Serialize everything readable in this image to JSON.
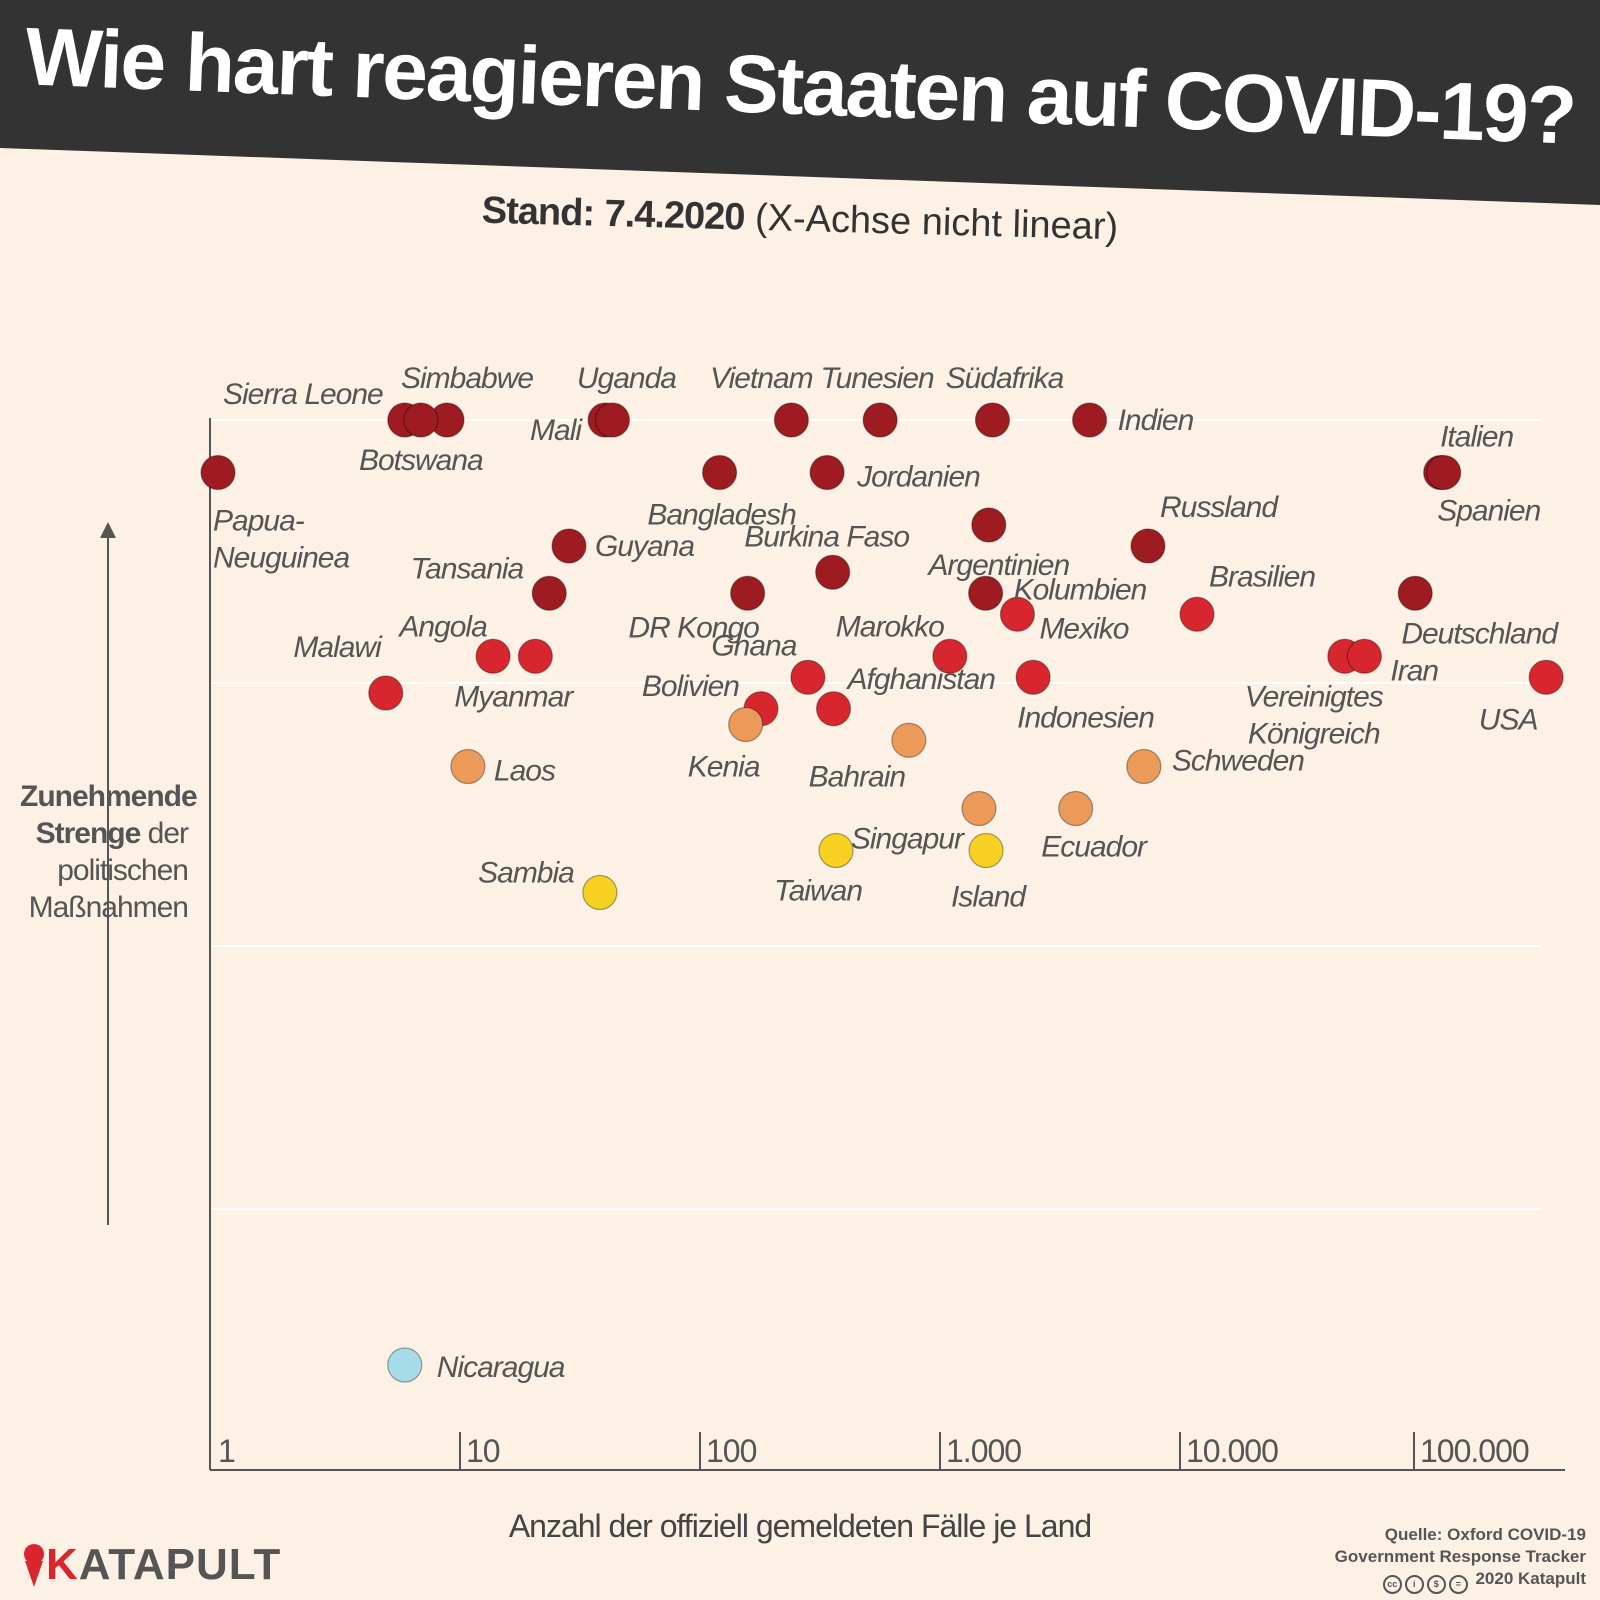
{
  "title": "Wie hart reagieren Staaten auf COVID-19?",
  "subtitle": {
    "prefix": "Stand:",
    "date": "7.4.2020",
    "note": "(X-Achse nicht linear)"
  },
  "y_axis_label": {
    "bold": "Zunehmende Strenge",
    "rest": "der politischen Maßnahmen"
  },
  "x_axis_label": "Anzahl der offiziell gemeldeten Fälle je Land",
  "logo": {
    "k": "K",
    "rest": "ATAPULT"
  },
  "source": {
    "line1": "Quelle: Oxford COVID-19",
    "line2": "Government Response Tracker",
    "line3": "2020 Katapult"
  },
  "colors": {
    "background": "#fdf1e6",
    "header": "#333333",
    "darkred": "#9e1b22",
    "red": "#d7262e",
    "orange": "#ec9a5a",
    "yellow": "#f7d121",
    "lightblue": "#a6dbe8",
    "axis": "#555555",
    "grid": "#ffffff"
  },
  "chart_data": {
    "type": "scatter",
    "title": "Wie hart reagieren Staaten auf COVID-19?",
    "xlabel": "Anzahl der offiziell gemeldeten Fälle je Land",
    "ylabel": "Zunehmende Strenge der politischen Maßnahmen",
    "x_scale": "log (nicht linear)",
    "x_ticks": [
      "1",
      "10",
      "100",
      "1.000",
      "10.000",
      "100.000"
    ],
    "ylim": [
      0,
      100
    ],
    "points": [
      {
        "name": "Sierra Leone",
        "x": 6,
        "y": 100,
        "cat": "darkred",
        "label": [
          "Sierra Leone"
        ],
        "anchor": "end",
        "ldx": -22,
        "ldy": -16
      },
      {
        "name": "Simbabwe",
        "x": 9,
        "y": 100,
        "cat": "darkred",
        "label": [
          "Simbabwe"
        ],
        "anchor": "middle",
        "ldx": 20,
        "ldy": -32
      },
      {
        "name": "Botswana",
        "x": 7,
        "y": 100,
        "cat": "darkred",
        "label": [
          "Botswana"
        ],
        "anchor": "middle",
        "ldx": 0,
        "ldy": 50
      },
      {
        "name": "Mali",
        "x": 41,
        "y": 100,
        "cat": "darkred",
        "label": [
          "Mali"
        ],
        "anchor": "end",
        "ldx": -24,
        "ldy": 20
      },
      {
        "name": "Uganda",
        "x": 44,
        "y": 100,
        "cat": "darkred",
        "label": [
          "Uganda"
        ],
        "anchor": "middle",
        "ldx": 14,
        "ldy": -32
      },
      {
        "name": "Vietnam",
        "x": 245,
        "y": 100,
        "cat": "darkred",
        "label": [
          "Vietnam"
        ],
        "anchor": "middle",
        "ldx": -30,
        "ldy": -32
      },
      {
        "name": "Tunesien",
        "x": 574,
        "y": 100,
        "cat": "darkred",
        "label": [
          "Tunesien"
        ],
        "anchor": "middle",
        "ldx": -3,
        "ldy": -32
      },
      {
        "name": "Südafrika",
        "x": 1686,
        "y": 100,
        "cat": "darkred",
        "label": [
          "Südafrika"
        ],
        "anchor": "middle",
        "ldx": 12,
        "ldy": -32
      },
      {
        "name": "Indien",
        "x": 4281,
        "y": 100,
        "cat": "darkred",
        "label": [
          "Indien"
        ],
        "anchor": "start",
        "ldx": 28,
        "ldy": 10
      },
      {
        "name": "Papua-Neuguinea",
        "x": 1,
        "y": 95,
        "cat": "darkred",
        "label": [
          "Papua-",
          "Neuguinea"
        ],
        "anchor": "start",
        "ldx": -5,
        "ldy": 58
      },
      {
        "name": "Bangladesh",
        "x": 123,
        "y": 95,
        "cat": "darkred",
        "label": [
          "Bangladesh"
        ],
        "anchor": "middle",
        "ldx": 2,
        "ldy": 52
      },
      {
        "name": "Jordanien",
        "x": 345,
        "y": 95,
        "cat": "darkred",
        "label": [
          "Jordanien"
        ],
        "anchor": "start",
        "ldx": 30,
        "ldy": 14
      },
      {
        "name": "Italien",
        "x": 132547,
        "y": 95,
        "cat": "darkred",
        "label": [
          "Italien"
        ],
        "anchor": "middle",
        "ldx": 36,
        "ldy": -26
      },
      {
        "name": "Spanien",
        "x": 136675,
        "y": 95,
        "cat": "darkred",
        "label": [
          "Spanien"
        ],
        "anchor": "middle",
        "ldx": 45,
        "ldy": 48
      },
      {
        "name": "Argentinien",
        "x": 1628,
        "y": 90,
        "cat": "darkred",
        "label": [
          "Argentinien"
        ],
        "anchor": "middle",
        "ldx": 10,
        "ldy": 50
      },
      {
        "name": "Russland",
        "x": 7497,
        "y": 88,
        "cat": "darkred",
        "label": [
          "Russland"
        ],
        "anchor": "start",
        "ldx": 12,
        "ldy": -29
      },
      {
        "name": "Guyana",
        "x": 29,
        "y": 88,
        "cat": "darkred",
        "label": [
          "Guyana"
        ],
        "anchor": "start",
        "ldx": 26,
        "ldy": 10
      },
      {
        "name": "Burkina Faso",
        "x": 364,
        "y": 85.5,
        "cat": "darkred",
        "label": [
          "Burkina Faso"
        ],
        "anchor": "middle",
        "ldx": -6,
        "ldy": -26
      },
      {
        "name": "Tansania",
        "x": 24,
        "y": 83.5,
        "cat": "darkred",
        "label": [
          "Tansania"
        ],
        "anchor": "end",
        "ldx": -26,
        "ldy": -15
      },
      {
        "name": "DR Kongo",
        "x": 161,
        "y": 83.5,
        "cat": "darkred",
        "label": [
          "DR Kongo"
        ],
        "anchor": "middle",
        "ldx": -54,
        "ldy": 44
      },
      {
        "name": "Kolumbien",
        "x": 1579,
        "y": 83.5,
        "cat": "darkred",
        "label": [
          "Kolumbien"
        ],
        "anchor": "start",
        "ldx": 28,
        "ldy": 6
      },
      {
        "name": "Deutschland",
        "x": 103228,
        "y": 83.5,
        "cat": "darkred",
        "label": [
          "Deutschland"
        ],
        "anchor": "middle",
        "ldx": 64,
        "ldy": 50
      },
      {
        "name": "Mexiko",
        "x": 2143,
        "y": 81.5,
        "cat": "red",
        "label": [
          "Mexiko"
        ],
        "anchor": "start",
        "ldx": 22,
        "ldy": 24
      },
      {
        "name": "Brasilien",
        "x": 12056,
        "y": 81.5,
        "cat": "red",
        "label": [
          "Brasilien"
        ],
        "anchor": "start",
        "ldx": 12,
        "ldy": -28
      },
      {
        "name": "Angola",
        "x": 14,
        "y": 77.5,
        "cat": "red",
        "label": [
          "Angola"
        ],
        "anchor": "middle",
        "ldx": -50,
        "ldy": -20
      },
      {
        "name": "Myanmar",
        "x": 21,
        "y": 77.5,
        "cat": "red",
        "label": [
          "Myanmar"
        ],
        "anchor": "middle",
        "ldx": -22,
        "ldy": 50
      },
      {
        "name": "Marokko",
        "x": 1120,
        "y": 77.5,
        "cat": "red",
        "label": [
          "Marokko"
        ],
        "anchor": "middle",
        "ldx": -60,
        "ldy": -20
      },
      {
        "name": "Vereinigtes Königreich",
        "x": 51608,
        "y": 77.5,
        "cat": "red",
        "label": [
          "Vereinigtes",
          "Königreich"
        ],
        "anchor": "middle",
        "ldx": -31,
        "ldy": 50
      },
      {
        "name": "Iran",
        "x": 62589,
        "y": 77.5,
        "cat": "red",
        "label": [
          "Iran"
        ],
        "anchor": "start",
        "ldx": 26,
        "ldy": 24
      },
      {
        "name": "Ghana",
        "x": 287,
        "y": 75.5,
        "cat": "red",
        "label": [
          "Ghana"
        ],
        "anchor": "middle",
        "ldx": -54,
        "ldy": -22
      },
      {
        "name": "Indonesien",
        "x": 2491,
        "y": 75.5,
        "cat": "red",
        "label": [
          "Indonesien"
        ],
        "anchor": "start",
        "ldx": -16,
        "ldy": 50
      },
      {
        "name": "USA",
        "x": 374329,
        "y": 75.5,
        "cat": "red",
        "label": [
          "USA"
        ],
        "anchor": "middle",
        "ldx": -38,
        "ldy": 52
      },
      {
        "name": "Malawi",
        "x": 5,
        "y": 74,
        "cat": "red",
        "label": [
          "Malawi"
        ],
        "anchor": "end",
        "ldx": -5,
        "ldy": -36
      },
      {
        "name": "Afghanistan",
        "x": 367,
        "y": 72.5,
        "cat": "red",
        "label": [
          "Afghanistan"
        ],
        "anchor": "start",
        "ldx": 14,
        "ldy": -20
      },
      {
        "name": "Bolivien",
        "x": 183,
        "y": 72.5,
        "cat": "red",
        "label": [
          "Bolivien"
        ],
        "anchor": "end",
        "ldx": -22,
        "ldy": -13
      },
      {
        "name": "Kenia",
        "x": 158,
        "y": 71,
        "cat": "orange",
        "label": [
          "Kenia"
        ],
        "anchor": "middle",
        "ldx": -22,
        "ldy": 52
      },
      {
        "name": "Bahrain",
        "x": 756,
        "y": 69.5,
        "cat": "orange",
        "label": [
          "Bahrain"
        ],
        "anchor": "middle",
        "ldx": -52,
        "ldy": 46
      },
      {
        "name": "Laos",
        "x": 11,
        "y": 67,
        "cat": "orange",
        "label": [
          "Laos"
        ],
        "anchor": "start",
        "ldx": 26,
        "ldy": 14
      },
      {
        "name": "Schweden",
        "x": 7206,
        "y": 67,
        "cat": "orange",
        "label": [
          "Schweden"
        ],
        "anchor": "start",
        "ldx": 28,
        "ldy": 4
      },
      {
        "name": "Singapur",
        "x": 1481,
        "y": 63,
        "cat": "orange",
        "label": [
          "Singapur"
        ],
        "anchor": "middle",
        "ldx": -72,
        "ldy": 40
      },
      {
        "name": "Ecuador",
        "x": 3747,
        "y": 63,
        "cat": "orange",
        "label": [
          "Ecuador"
        ],
        "anchor": "middle",
        "ldx": 18,
        "ldy": 48
      },
      {
        "name": "Sambia",
        "x": 39,
        "y": 55,
        "cat": "yellow",
        "label": [
          "Sambia"
        ],
        "anchor": "end",
        "ldx": -26,
        "ldy": -10
      },
      {
        "name": "Taiwan",
        "x": 376,
        "y": 59,
        "cat": "yellow",
        "label": [
          "Taiwan"
        ],
        "anchor": "middle",
        "ldx": -18,
        "ldy": 50
      },
      {
        "name": "Island",
        "x": 1586,
        "y": 59,
        "cat": "yellow",
        "label": [
          "Island"
        ],
        "anchor": "middle",
        "ldx": 2,
        "ldy": 56
      },
      {
        "name": "Nicaragua",
        "x": 6,
        "y": 10,
        "cat": "lightblue",
        "label": [
          "Nicaragua"
        ],
        "anchor": "start",
        "ldx": 32,
        "ldy": 12
      }
    ]
  }
}
